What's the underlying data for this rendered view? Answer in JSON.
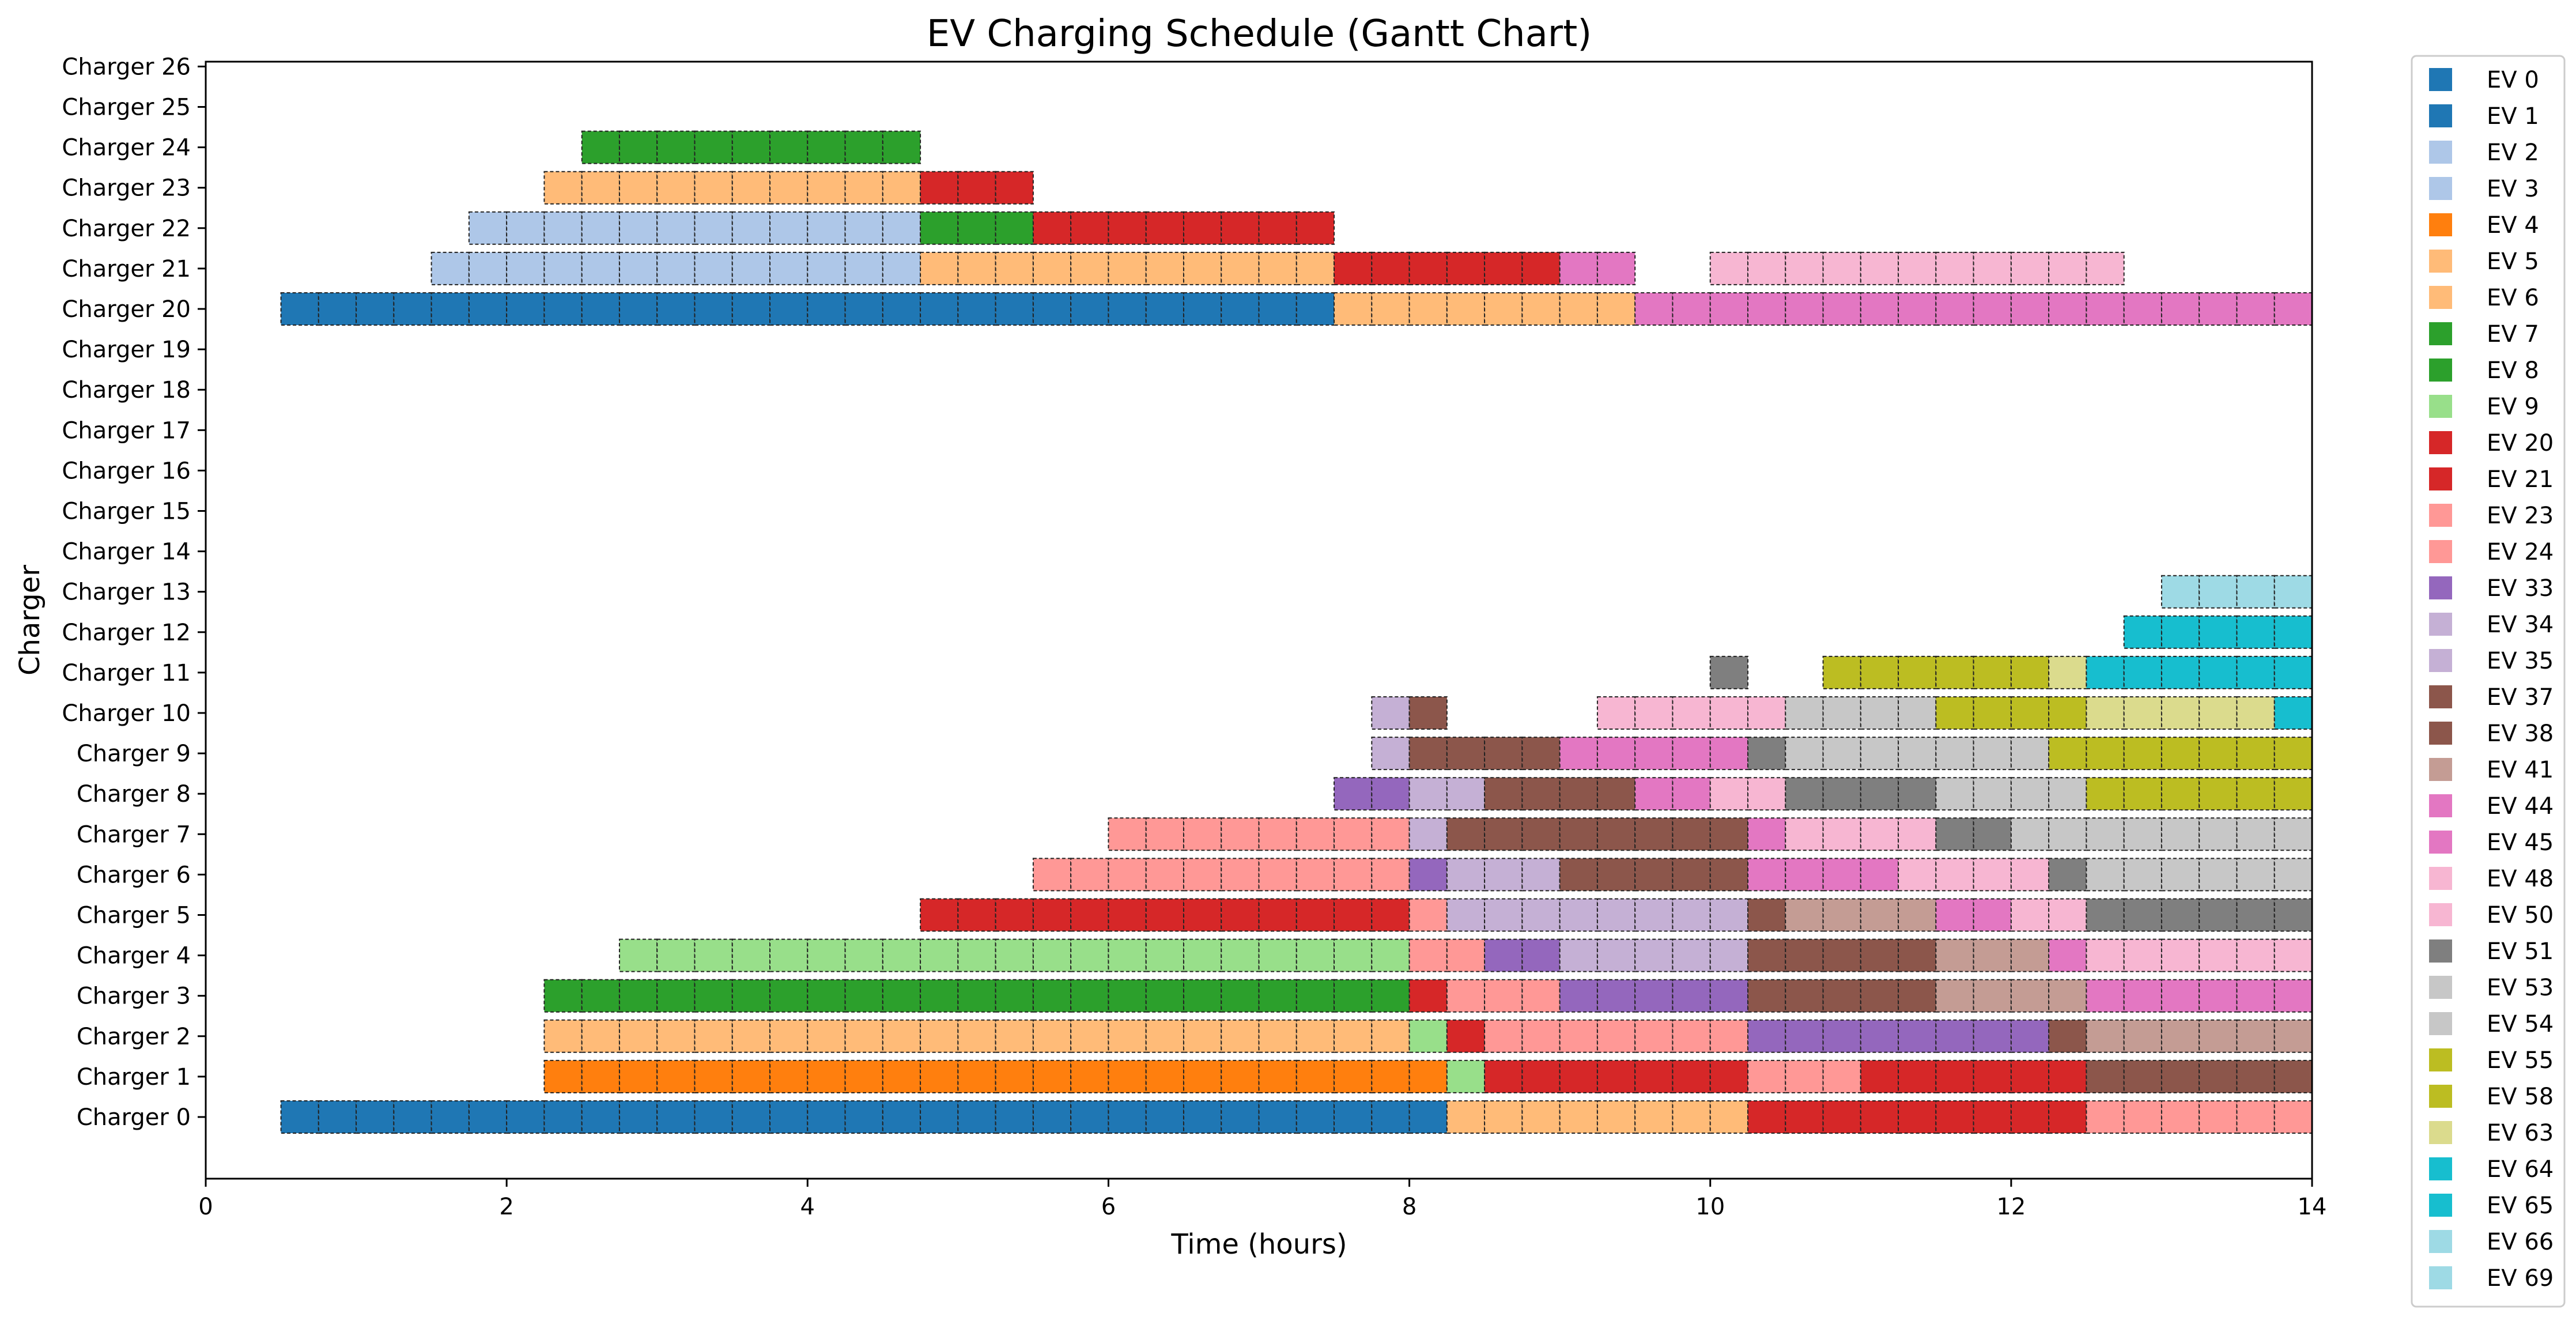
{
  "chart_data": {
    "type": "gantt",
    "title": "EV Charging Schedule (Gantt Chart)",
    "xlabel": "Time (hours)",
    "ylabel": "Charger",
    "xlim": [
      0,
      14
    ],
    "x_ticks": [
      0,
      2,
      4,
      6,
      8,
      10,
      12,
      14
    ],
    "chargers": [
      "Charger 0",
      "Charger 1",
      "Charger 2",
      "Charger 3",
      "Charger 4",
      "Charger 5",
      "Charger 6",
      "Charger 7",
      "Charger 8",
      "Charger 9",
      "Charger 10",
      "Charger 11",
      "Charger 12",
      "Charger 13",
      "Charger 14",
      "Charger 15",
      "Charger 16",
      "Charger 17",
      "Charger 18",
      "Charger 19",
      "Charger 20",
      "Charger 21",
      "Charger 22",
      "Charger 23",
      "Charger 24",
      "Charger 25",
      "Charger 26"
    ],
    "slot_hours": 0.25,
    "legend": [
      {
        "label": "EV 0",
        "color": "#1f77b4"
      },
      {
        "label": "EV 1",
        "color": "#1f77b4"
      },
      {
        "label": "EV 2",
        "color": "#aec7e8"
      },
      {
        "label": "EV 3",
        "color": "#aec7e8"
      },
      {
        "label": "EV 4",
        "color": "#ff7f0e"
      },
      {
        "label": "EV 5",
        "color": "#ffbb78"
      },
      {
        "label": "EV 6",
        "color": "#ffbb78"
      },
      {
        "label": "EV 7",
        "color": "#2ca02c"
      },
      {
        "label": "EV 8",
        "color": "#2ca02c"
      },
      {
        "label": "EV 9",
        "color": "#98df8a"
      },
      {
        "label": "EV 20",
        "color": "#d62728"
      },
      {
        "label": "EV 21",
        "color": "#d62728"
      },
      {
        "label": "EV 23",
        "color": "#ff9896"
      },
      {
        "label": "EV 24",
        "color": "#ff9896"
      },
      {
        "label": "EV 33",
        "color": "#9467bd"
      },
      {
        "label": "EV 34",
        "color": "#c5b0d5"
      },
      {
        "label": "EV 35",
        "color": "#c5b0d5"
      },
      {
        "label": "EV 37",
        "color": "#8c564b"
      },
      {
        "label": "EV 38",
        "color": "#8c564b"
      },
      {
        "label": "EV 41",
        "color": "#c49c94"
      },
      {
        "label": "EV 44",
        "color": "#e377c2"
      },
      {
        "label": "EV 45",
        "color": "#e377c2"
      },
      {
        "label": "EV 48",
        "color": "#f7b6d2"
      },
      {
        "label": "EV 50",
        "color": "#f7b6d2"
      },
      {
        "label": "EV 51",
        "color": "#7f7f7f"
      },
      {
        "label": "EV 53",
        "color": "#c7c7c7"
      },
      {
        "label": "EV 54",
        "color": "#c7c7c7"
      },
      {
        "label": "EV 55",
        "color": "#bcbd22"
      },
      {
        "label": "EV 58",
        "color": "#bcbd22"
      },
      {
        "label": "EV 63",
        "color": "#dbdb8d"
      },
      {
        "label": "EV 64",
        "color": "#17becf"
      },
      {
        "label": "EV 65",
        "color": "#17becf"
      },
      {
        "label": "EV 66",
        "color": "#9edae5"
      },
      {
        "label": "EV 69",
        "color": "#9edae5"
      }
    ],
    "bars": [
      {
        "charger": 0,
        "ev": "EV 0",
        "start": 0.5,
        "end": 8.25
      },
      {
        "charger": 0,
        "ev": "EV 5",
        "start": 8.25,
        "end": 10.25
      },
      {
        "charger": 0,
        "ev": "EV 20",
        "start": 10.25,
        "end": 12.5
      },
      {
        "charger": 0,
        "ev": "EV 23",
        "start": 12.5,
        "end": 14.0
      },
      {
        "charger": 1,
        "ev": "EV 4",
        "start": 2.25,
        "end": 8.25
      },
      {
        "charger": 1,
        "ev": "EV 9",
        "start": 8.25,
        "end": 8.5
      },
      {
        "charger": 1,
        "ev": "EV 21",
        "start": 8.5,
        "end": 10.25
      },
      {
        "charger": 1,
        "ev": "EV 24",
        "start": 10.25,
        "end": 11.0
      },
      {
        "charger": 1,
        "ev": "EV 20",
        "start": 11.0,
        "end": 12.5
      },
      {
        "charger": 1,
        "ev": "EV 38",
        "start": 12.5,
        "end": 14.0
      },
      {
        "charger": 2,
        "ev": "EV 6",
        "start": 2.25,
        "end": 8.0
      },
      {
        "charger": 2,
        "ev": "EV 9",
        "start": 8.0,
        "end": 8.25
      },
      {
        "charger": 2,
        "ev": "EV 21",
        "start": 8.25,
        "end": 8.5
      },
      {
        "charger": 2,
        "ev": "EV 24",
        "start": 8.5,
        "end": 10.25
      },
      {
        "charger": 2,
        "ev": "EV 33",
        "start": 10.25,
        "end": 12.25
      },
      {
        "charger": 2,
        "ev": "EV 37",
        "start": 12.25,
        "end": 12.5
      },
      {
        "charger": 2,
        "ev": "EV 41",
        "start": 12.5,
        "end": 14.0
      },
      {
        "charger": 3,
        "ev": "EV 8",
        "start": 2.25,
        "end": 8.0
      },
      {
        "charger": 3,
        "ev": "EV 20",
        "start": 8.0,
        "end": 8.25
      },
      {
        "charger": 3,
        "ev": "EV 23",
        "start": 8.25,
        "end": 9.0
      },
      {
        "charger": 3,
        "ev": "EV 33",
        "start": 9.0,
        "end": 10.25
      },
      {
        "charger": 3,
        "ev": "EV 37",
        "start": 10.25,
        "end": 11.5
      },
      {
        "charger": 3,
        "ev": "EV 41",
        "start": 11.5,
        "end": 12.5
      },
      {
        "charger": 3,
        "ev": "EV 45",
        "start": 12.5,
        "end": 14.0
      },
      {
        "charger": 4,
        "ev": "EV 9",
        "start": 2.75,
        "end": 8.0
      },
      {
        "charger": 4,
        "ev": "EV 24",
        "start": 8.0,
        "end": 8.5
      },
      {
        "charger": 4,
        "ev": "EV 33",
        "start": 8.5,
        "end": 9.0
      },
      {
        "charger": 4,
        "ev": "EV 34",
        "start": 9.0,
        "end": 10.25
      },
      {
        "charger": 4,
        "ev": "EV 38",
        "start": 10.25,
        "end": 11.5
      },
      {
        "charger": 4,
        "ev": "EV 41",
        "start": 11.5,
        "end": 12.25
      },
      {
        "charger": 4,
        "ev": "EV 44",
        "start": 12.25,
        "end": 12.5
      },
      {
        "charger": 4,
        "ev": "EV 48",
        "start": 12.5,
        "end": 14.0
      },
      {
        "charger": 5,
        "ev": "EV 20",
        "start": 4.75,
        "end": 8.0
      },
      {
        "charger": 5,
        "ev": "EV 24",
        "start": 8.0,
        "end": 8.25
      },
      {
        "charger": 5,
        "ev": "EV 34",
        "start": 8.25,
        "end": 10.25
      },
      {
        "charger": 5,
        "ev": "EV 37",
        "start": 10.25,
        "end": 10.5
      },
      {
        "charger": 5,
        "ev": "EV 41",
        "start": 10.5,
        "end": 11.5
      },
      {
        "charger": 5,
        "ev": "EV 44",
        "start": 11.5,
        "end": 12.0
      },
      {
        "charger": 5,
        "ev": "EV 48",
        "start": 12.0,
        "end": 12.5
      },
      {
        "charger": 5,
        "ev": "EV 51",
        "start": 12.5,
        "end": 14.0
      },
      {
        "charger": 6,
        "ev": "EV 23",
        "start": 5.5,
        "end": 8.0
      },
      {
        "charger": 6,
        "ev": "EV 33",
        "start": 8.0,
        "end": 8.25
      },
      {
        "charger": 6,
        "ev": "EV 35",
        "start": 8.25,
        "end": 9.0
      },
      {
        "charger": 6,
        "ev": "EV 37",
        "start": 9.0,
        "end": 10.25
      },
      {
        "charger": 6,
        "ev": "EV 44",
        "start": 10.25,
        "end": 11.25
      },
      {
        "charger": 6,
        "ev": "EV 50",
        "start": 11.25,
        "end": 12.25
      },
      {
        "charger": 6,
        "ev": "EV 51",
        "start": 12.25,
        "end": 12.5
      },
      {
        "charger": 6,
        "ev": "EV 53",
        "start": 12.5,
        "end": 14.0
      },
      {
        "charger": 7,
        "ev": "EV 24",
        "start": 6.0,
        "end": 8.0
      },
      {
        "charger": 7,
        "ev": "EV 34",
        "start": 8.0,
        "end": 8.25
      },
      {
        "charger": 7,
        "ev": "EV 38",
        "start": 8.25,
        "end": 10.25
      },
      {
        "charger": 7,
        "ev": "EV 45",
        "start": 10.25,
        "end": 10.5
      },
      {
        "charger": 7,
        "ev": "EV 50",
        "start": 10.5,
        "end": 11.5
      },
      {
        "charger": 7,
        "ev": "EV 51",
        "start": 11.5,
        "end": 12.0
      },
      {
        "charger": 7,
        "ev": "EV 54",
        "start": 12.0,
        "end": 14.0
      },
      {
        "charger": 8,
        "ev": "EV 33",
        "start": 7.5,
        "end": 8.0
      },
      {
        "charger": 8,
        "ev": "EV 35",
        "start": 8.0,
        "end": 8.5
      },
      {
        "charger": 8,
        "ev": "EV 37",
        "start": 8.5,
        "end": 9.5
      },
      {
        "charger": 8,
        "ev": "EV 44",
        "start": 9.5,
        "end": 10.0
      },
      {
        "charger": 8,
        "ev": "EV 48",
        "start": 10.0,
        "end": 10.5
      },
      {
        "charger": 8,
        "ev": "EV 51",
        "start": 10.5,
        "end": 11.5
      },
      {
        "charger": 8,
        "ev": "EV 53",
        "start": 11.5,
        "end": 12.5
      },
      {
        "charger": 8,
        "ev": "EV 55",
        "start": 12.5,
        "end": 14.0
      },
      {
        "charger": 9,
        "ev": "EV 34",
        "start": 7.75,
        "end": 8.0
      },
      {
        "charger": 9,
        "ev": "EV 38",
        "start": 8.0,
        "end": 9.0
      },
      {
        "charger": 9,
        "ev": "EV 45",
        "start": 9.0,
        "end": 10.25
      },
      {
        "charger": 9,
        "ev": "EV 51",
        "start": 10.25,
        "end": 10.5
      },
      {
        "charger": 9,
        "ev": "EV 54",
        "start": 10.5,
        "end": 12.25
      },
      {
        "charger": 9,
        "ev": "EV 58",
        "start": 12.25,
        "end": 14.0
      },
      {
        "charger": 10,
        "ev": "EV 35",
        "start": 7.75,
        "end": 8.0
      },
      {
        "charger": 10,
        "ev": "EV 37",
        "start": 8.0,
        "end": 8.25
      },
      {
        "charger": 10,
        "ev": "EV 48",
        "start": 9.25,
        "end": 10.5
      },
      {
        "charger": 10,
        "ev": "EV 53",
        "start": 10.5,
        "end": 11.5
      },
      {
        "charger": 10,
        "ev": "EV 55",
        "start": 11.5,
        "end": 12.5
      },
      {
        "charger": 10,
        "ev": "EV 63",
        "start": 12.5,
        "end": 13.75
      },
      {
        "charger": 10,
        "ev": "EV 64",
        "start": 13.75,
        "end": 14.0
      },
      {
        "charger": 11,
        "ev": "EV 51",
        "start": 10.0,
        "end": 10.25
      },
      {
        "charger": 11,
        "ev": "EV 58",
        "start": 10.75,
        "end": 12.25
      },
      {
        "charger": 11,
        "ev": "EV 63",
        "start": 12.25,
        "end": 12.5
      },
      {
        "charger": 11,
        "ev": "EV 64",
        "start": 12.5,
        "end": 14.0
      },
      {
        "charger": 12,
        "ev": "EV 65",
        "start": 12.75,
        "end": 14.0
      },
      {
        "charger": 13,
        "ev": "EV 66",
        "start": 13.0,
        "end": 14.0
      },
      {
        "charger": 20,
        "ev": "EV 1",
        "start": 0.5,
        "end": 7.5
      },
      {
        "charger": 20,
        "ev": "EV 6",
        "start": 7.5,
        "end": 9.5
      },
      {
        "charger": 20,
        "ev": "EV 45",
        "start": 9.5,
        "end": 14.0
      },
      {
        "charger": 21,
        "ev": "EV 2",
        "start": 1.5,
        "end": 4.75
      },
      {
        "charger": 21,
        "ev": "EV 5",
        "start": 4.75,
        "end": 7.5
      },
      {
        "charger": 21,
        "ev": "EV 21",
        "start": 7.5,
        "end": 9.0
      },
      {
        "charger": 21,
        "ev": "EV 44",
        "start": 9.0,
        "end": 9.5
      },
      {
        "charger": 21,
        "ev": "EV 50",
        "start": 10.0,
        "end": 12.75
      },
      {
        "charger": 22,
        "ev": "EV 3",
        "start": 1.75,
        "end": 4.75
      },
      {
        "charger": 22,
        "ev": "EV 7",
        "start": 4.75,
        "end": 5.5
      },
      {
        "charger": 22,
        "ev": "EV 21",
        "start": 5.5,
        "end": 7.5
      },
      {
        "charger": 23,
        "ev": "EV 5",
        "start": 2.25,
        "end": 4.75
      },
      {
        "charger": 23,
        "ev": "EV 20",
        "start": 4.75,
        "end": 5.5
      },
      {
        "charger": 24,
        "ev": "EV 7",
        "start": 2.5,
        "end": 4.75
      }
    ]
  }
}
